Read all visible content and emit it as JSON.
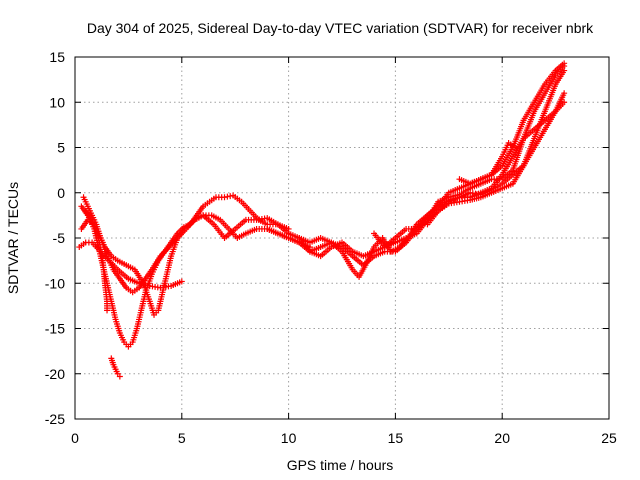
{
  "chart_data": {
    "type": "scatter",
    "title": "Day 304 of 2025, Sidereal Day-to-day VTEC variation (SDTVAR) for receiver nbrk",
    "xlabel": "GPS time / hours",
    "ylabel": "SDTVAR / TECUs",
    "xlim": [
      0,
      25
    ],
    "ylim": [
      -25,
      15
    ],
    "xticks": [
      "0",
      "5",
      "10",
      "15",
      "20",
      "25"
    ],
    "yticks": [
      "15",
      "10",
      "5",
      "0",
      "-5",
      "-10",
      "-15",
      "-20",
      "-25"
    ],
    "grid": true,
    "marker": "plus",
    "color": "#ff0000",
    "series": [
      {
        "values": [
          [
            0.2,
            -6
          ],
          [
            0.5,
            -5.5
          ],
          [
            0.8,
            -5.5
          ],
          [
            1.2,
            -6.5
          ],
          [
            1.6,
            -7.5
          ],
          [
            2.0,
            -8.5
          ],
          [
            2.5,
            -9.5
          ],
          [
            3.0,
            -10
          ],
          [
            3.5,
            -10.3
          ],
          [
            4.0,
            -10.5
          ],
          [
            4.5,
            -10.3
          ],
          [
            5.0,
            -9.8
          ]
        ]
      },
      {
        "values": [
          [
            0.3,
            -1.5
          ],
          [
            0.6,
            -2.5
          ],
          [
            0.9,
            -4
          ],
          [
            1.1,
            -6
          ],
          [
            1.3,
            -8
          ],
          [
            1.5,
            -10
          ],
          [
            1.7,
            -12
          ],
          [
            1.9,
            -14
          ],
          [
            2.1,
            -15.5
          ],
          [
            2.3,
            -16.5
          ],
          [
            2.5,
            -17
          ],
          [
            2.7,
            -16.5
          ],
          [
            2.9,
            -15
          ],
          [
            3.1,
            -13
          ],
          [
            3.3,
            -11
          ],
          [
            3.6,
            -9
          ],
          [
            3.9,
            -7.5
          ],
          [
            4.2,
            -6.5
          ],
          [
            4.5,
            -5.5
          ],
          [
            4.8,
            -4.5
          ],
          [
            5.1,
            -3.8
          ],
          [
            5.4,
            -3.5
          ],
          [
            5.7,
            -2.5
          ],
          [
            6.0,
            -1.5
          ],
          [
            6.3,
            -1
          ],
          [
            6.6,
            -0.5
          ],
          [
            7.0,
            -0.5
          ],
          [
            7.4,
            -0.3
          ],
          [
            7.8,
            -1
          ],
          [
            8.2,
            -2
          ],
          [
            8.6,
            -3
          ],
          [
            9.0,
            -3.5
          ],
          [
            9.4,
            -3.5
          ]
        ]
      },
      {
        "values": [
          [
            0.4,
            -0.5
          ],
          [
            0.7,
            -2
          ],
          [
            1.0,
            -3.5
          ],
          [
            1.2,
            -5
          ],
          [
            1.4,
            -6
          ],
          [
            1.7,
            -7
          ],
          [
            2.0,
            -7.5
          ],
          [
            2.4,
            -8
          ],
          [
            2.8,
            -8.5
          ],
          [
            3.2,
            -10
          ],
          [
            3.5,
            -12
          ],
          [
            3.7,
            -13.5
          ],
          [
            3.9,
            -13
          ],
          [
            4.1,
            -11
          ],
          [
            4.3,
            -9
          ],
          [
            4.5,
            -7
          ],
          [
            4.8,
            -5
          ],
          [
            5.2,
            -3.8
          ],
          [
            5.6,
            -3
          ],
          [
            6.0,
            -2.5
          ],
          [
            6.4,
            -2.5
          ],
          [
            6.8,
            -3
          ],
          [
            7.2,
            -4
          ],
          [
            7.6,
            -5
          ],
          [
            8.0,
            -4.5
          ],
          [
            8.5,
            -4
          ],
          [
            9.0,
            -4
          ],
          [
            9.5,
            -4.5
          ],
          [
            10.0,
            -5
          ],
          [
            10.5,
            -5.5
          ],
          [
            11.0,
            -6
          ]
        ]
      },
      {
        "values": [
          [
            0.3,
            -4
          ],
          [
            0.6,
            -3
          ],
          [
            0.9,
            -3.5
          ],
          [
            1.2,
            -5
          ],
          [
            1.5,
            -7
          ],
          [
            1.8,
            -8.5
          ],
          [
            2.1,
            -9.5
          ],
          [
            2.4,
            -10.5
          ],
          [
            2.7,
            -11
          ],
          [
            3.0,
            -10.5
          ],
          [
            3.3,
            -9.5
          ],
          [
            3.6,
            -8.5
          ],
          [
            4.0,
            -7
          ],
          [
            4.4,
            -6
          ],
          [
            4.8,
            -5
          ],
          [
            5.2,
            -4
          ],
          [
            5.6,
            -3
          ],
          [
            6.0,
            -2.5
          ],
          [
            6.5,
            -3.5
          ],
          [
            7.0,
            -5
          ],
          [
            7.5,
            -4
          ],
          [
            8.0,
            -3
          ],
          [
            8.5,
            -3
          ],
          [
            9.0,
            -2.8
          ],
          [
            9.5,
            -3.5
          ],
          [
            10.0,
            -4
          ]
        ]
      },
      {
        "values": [
          [
            0.5,
            -2
          ],
          [
            0.8,
            -3
          ],
          [
            1.1,
            -5
          ],
          [
            1.3,
            -7.5
          ],
          [
            1.4,
            -10
          ],
          [
            1.5,
            -12
          ],
          [
            1.5,
            -13
          ]
        ]
      },
      {
        "values": [
          [
            1.7,
            -18.3
          ],
          [
            1.8,
            -19
          ],
          [
            1.9,
            -19.5
          ],
          [
            2.0,
            -20
          ],
          [
            2.1,
            -20.3
          ]
        ]
      },
      {
        "values": [
          [
            9.0,
            -4
          ],
          [
            9.5,
            -4.5
          ],
          [
            10.0,
            -5
          ],
          [
            10.5,
            -5.5
          ],
          [
            11.0,
            -6.5
          ],
          [
            11.5,
            -6
          ],
          [
            12.0,
            -5.5
          ],
          [
            12.5,
            -6
          ],
          [
            13.0,
            -7
          ],
          [
            13.5,
            -8
          ],
          [
            14.0,
            -7
          ],
          [
            14.5,
            -6.5
          ],
          [
            15.0,
            -6.5
          ],
          [
            15.5,
            -5.5
          ],
          [
            16.0,
            -4
          ],
          [
            16.5,
            -3
          ],
          [
            17.0,
            -2
          ],
          [
            17.5,
            -1
          ],
          [
            18.0,
            -0.5
          ],
          [
            18.5,
            0
          ],
          [
            19.0,
            -0.2
          ],
          [
            19.5,
            0.3
          ],
          [
            20.0,
            1
          ],
          [
            20.5,
            2
          ],
          [
            21.0,
            3
          ],
          [
            21.5,
            5
          ],
          [
            22.0,
            7
          ],
          [
            22.5,
            9
          ],
          [
            22.9,
            11
          ]
        ]
      },
      {
        "values": [
          [
            9.5,
            -3.5
          ],
          [
            10.0,
            -4.5
          ],
          [
            10.5,
            -5
          ],
          [
            11.0,
            -5.5
          ],
          [
            11.5,
            -5
          ],
          [
            12.0,
            -5.5
          ],
          [
            12.5,
            -6.5
          ],
          [
            13.0,
            -8.5
          ],
          [
            13.3,
            -9.3
          ],
          [
            13.6,
            -8
          ],
          [
            14.0,
            -6
          ],
          [
            14.4,
            -5
          ],
          [
            14.8,
            -6.5
          ],
          [
            15.2,
            -6
          ],
          [
            15.6,
            -5
          ],
          [
            16.0,
            -3.5
          ],
          [
            16.5,
            -2.5
          ],
          [
            17.0,
            -1.5
          ],
          [
            17.5,
            -0.8
          ],
          [
            18.0,
            -0.5
          ],
          [
            18.5,
            -0.5
          ],
          [
            19.0,
            0
          ],
          [
            19.5,
            0.5
          ],
          [
            20.0,
            2
          ],
          [
            20.5,
            4
          ],
          [
            21.0,
            6
          ],
          [
            21.5,
            7
          ],
          [
            22.0,
            8
          ],
          [
            22.5,
            9
          ],
          [
            22.9,
            10
          ]
        ]
      },
      {
        "values": [
          [
            10.5,
            -5
          ],
          [
            11.0,
            -6.5
          ],
          [
            11.5,
            -7
          ],
          [
            12.0,
            -6
          ],
          [
            12.5,
            -5.5
          ],
          [
            13.0,
            -6.5
          ],
          [
            13.5,
            -7
          ],
          [
            14.0,
            -6.5
          ],
          [
            14.5,
            -6
          ],
          [
            15.0,
            -5.5
          ],
          [
            15.5,
            -5
          ],
          [
            16.0,
            -4.5
          ],
          [
            16.5,
            -3
          ],
          [
            17.0,
            -1
          ],
          [
            17.5,
            -0.5
          ],
          [
            18.0,
            -0.2
          ],
          [
            18.5,
            0.5
          ],
          [
            19.0,
            1
          ],
          [
            19.5,
            1.5
          ],
          [
            20.0,
            1.5
          ],
          [
            20.5,
            2.5
          ],
          [
            21.0,
            6
          ],
          [
            21.5,
            9
          ],
          [
            22.0,
            11
          ],
          [
            22.5,
            13
          ],
          [
            22.9,
            14
          ]
        ]
      },
      {
        "values": [
          [
            14.0,
            -4.5
          ],
          [
            14.5,
            -6
          ],
          [
            15.0,
            -5
          ],
          [
            15.5,
            -4
          ],
          [
            16.0,
            -4
          ],
          [
            16.5,
            -2.5
          ],
          [
            17.0,
            -1.5
          ],
          [
            17.5,
            0
          ],
          [
            18.0,
            0.5
          ],
          [
            18.5,
            1
          ],
          [
            19.0,
            1.5
          ],
          [
            19.5,
            2
          ],
          [
            20.0,
            3
          ],
          [
            20.5,
            5
          ],
          [
            21.0,
            8
          ],
          [
            21.5,
            10
          ],
          [
            22.0,
            12
          ],
          [
            22.5,
            13.5
          ],
          [
            22.9,
            14.3
          ]
        ]
      },
      {
        "values": [
          [
            16.5,
            -3.5
          ],
          [
            17.0,
            -2
          ],
          [
            17.5,
            -1.2
          ],
          [
            18.0,
            -1
          ],
          [
            18.5,
            -0.8
          ],
          [
            19.0,
            -0.5
          ],
          [
            19.5,
            0
          ],
          [
            20.0,
            0.5
          ],
          [
            20.5,
            1
          ],
          [
            21.0,
            3
          ],
          [
            21.5,
            6
          ],
          [
            22.0,
            9
          ],
          [
            22.5,
            12
          ],
          [
            22.9,
            13.5
          ]
        ]
      },
      {
        "values": [
          [
            18.0,
            1.5
          ],
          [
            18.5,
            1
          ],
          [
            19.0,
            1.5
          ],
          [
            19.5,
            2
          ],
          [
            20.0,
            4
          ],
          [
            20.3,
            5.5
          ],
          [
            20.6,
            5
          ]
        ]
      }
    ]
  }
}
